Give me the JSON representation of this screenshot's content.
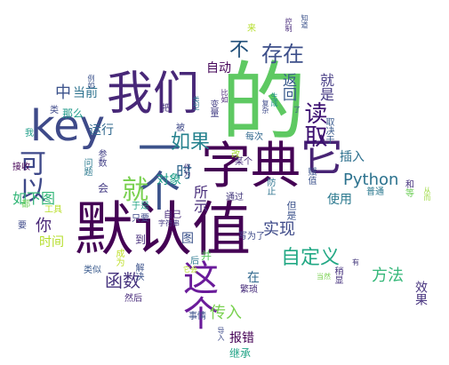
{
  "wordcloud": {
    "words": [
      {
        "text": "的",
        "color": "#5ec962"
      },
      {
        "text": "默认值",
        "color": "#440154"
      },
      {
        "text": "字典",
        "color": "#440154"
      },
      {
        "text": "我们",
        "color": "#482878"
      },
      {
        "text": "一个",
        "color": "#3b528b"
      },
      {
        "text": "key",
        "color": "#3e4a89"
      },
      {
        "text": "这个",
        "color": "#6a1b9a"
      },
      {
        "text": "它",
        "color": "#482475"
      },
      {
        "text": "就",
        "color": "#7ad151"
      },
      {
        "text": "可以",
        "color": "#3e4989"
      },
      {
        "text": "读取",
        "color": "#3b0f70"
      },
      {
        "text": "存在",
        "color": "#3d4f8a"
      },
      {
        "text": "不",
        "color": "#1f4e79"
      },
      {
        "text": "如果",
        "color": "#26828e"
      },
      {
        "text": "Python",
        "color": "#2c728e"
      },
      {
        "text": "自定义",
        "color": "#22a884"
      },
      {
        "text": "函数",
        "color": "#46337e"
      },
      {
        "text": "实现",
        "color": "#3e4a89"
      },
      {
        "text": "方法",
        "color": "#35b779"
      },
      {
        "text": "传入",
        "color": "#7ad151"
      },
      {
        "text": "报错",
        "color": "#440154"
      },
      {
        "text": "效果",
        "color": "#46327e"
      },
      {
        "text": "你",
        "color": "#482677"
      },
      {
        "text": "时",
        "color": "#31688e"
      },
      {
        "text": "中",
        "color": "#3b528b"
      },
      {
        "text": "当前",
        "color": "#2c728e"
      },
      {
        "text": "如下图",
        "color": "#35b779"
      },
      {
        "text": "所示",
        "color": "#472c7a"
      },
      {
        "text": "对象",
        "color": "#1f9e89"
      },
      {
        "text": "运行",
        "color": "#31688e"
      },
      {
        "text": "就是",
        "color": "#443a83"
      },
      {
        "text": "返回",
        "color": "#38598c"
      },
      {
        "text": "使用",
        "color": "#2a788e"
      },
      {
        "text": "自动",
        "color": "#46075a"
      },
      {
        "text": "插入",
        "color": "#2d708e"
      },
      {
        "text": "时间",
        "color": "#b5de2b"
      },
      {
        "text": "图",
        "color": "#3b528b"
      },
      {
        "text": "那么",
        "color": "#1f9a8a"
      },
      {
        "text": "在",
        "color": "#31688e"
      },
      {
        "text": "并",
        "color": "#5ec962"
      },
      {
        "text": "到",
        "color": "#472d7b"
      },
      {
        "text": "会",
        "color": "#443b84"
      },
      {
        "text": "继承",
        "color": "#20a386"
      },
      {
        "text": "但是",
        "color": "#3b528b"
      },
      {
        "text": "写为了",
        "color": "#3e4a89"
      },
      {
        "text": "通过",
        "color": "#44397d"
      },
      {
        "text": "普通",
        "color": "#2a778e"
      },
      {
        "text": "和",
        "color": "#46337f"
      },
      {
        "text": "从而",
        "color": "#9bd93c"
      },
      {
        "text": "事情",
        "color": "#3b528b"
      },
      {
        "text": "然后",
        "color": "#472a7a"
      },
      {
        "text": "解决",
        "color": "#3b528b"
      },
      {
        "text": "工具",
        "color": "#b8de29"
      },
      {
        "text": "要",
        "color": "#3e4989"
      },
      {
        "text": "接收",
        "color": "#440154"
      },
      {
        "text": "都",
        "color": "#6ece58"
      },
      {
        "text": "问题",
        "color": "#2a788e"
      },
      {
        "text": "参数",
        "color": "#424086"
      },
      {
        "text": "类",
        "color": "#3e4989"
      },
      {
        "text": "我",
        "color": "#1f9e89"
      },
      {
        "text": "只要",
        "color": "#3e4989"
      },
      {
        "text": "于是",
        "color": "#20a386"
      },
      {
        "text": "成为",
        "color": "#bddf26"
      },
      {
        "text": "变量",
        "color": "#433e85"
      },
      {
        "text": "每次",
        "color": "#31688e"
      },
      {
        "text": "防止",
        "color": "#2c728e"
      },
      {
        "text": "某个",
        "color": "#472c7a"
      },
      {
        "text": "赋值",
        "color": "#3b528b"
      },
      {
        "text": "取决于",
        "color": "#38598c"
      },
      {
        "text": "稍显",
        "color": "#46327e"
      },
      {
        "text": "当然",
        "color": "#7ad151"
      },
      {
        "text": "有",
        "color": "#44397d"
      },
      {
        "text": "了",
        "color": "#3b528b"
      },
      {
        "text": "来",
        "color": "#b5de2b"
      },
      {
        "text": "控制",
        "color": "#472a7a"
      },
      {
        "text": "知道",
        "color": "#3b528b"
      },
      {
        "text": "类型",
        "color": "#2c728e"
      },
      {
        "text": "比如",
        "color": "#482475"
      },
      {
        "text": "生成",
        "color": "#21918c"
      },
      {
        "text": "改",
        "color": "#a2da37"
      },
      {
        "text": "等",
        "color": "#6ece58"
      },
      {
        "text": "被",
        "color": "#3e4989"
      },
      {
        "text": "把",
        "color": "#46337f"
      },
      {
        "text": "后",
        "color": "#2a788e"
      },
      {
        "text": "例如",
        "color": "#3b528b"
      },
      {
        "text": "复杂",
        "color": "#3e4a89"
      },
      {
        "text": "繁琐",
        "color": "#472d7b"
      },
      {
        "text": "类似",
        "color": "#38598c"
      },
      {
        "text": "作为",
        "color": "#44397d"
      },
      {
        "text": "自己",
        "color": "#472a7a"
      },
      {
        "text": "它会",
        "color": "#b5de2b"
      },
      {
        "text": "字符串",
        "color": "#443a83"
      },
      {
        "text": "导入",
        "color": "#3e4a89"
      }
    ]
  }
}
